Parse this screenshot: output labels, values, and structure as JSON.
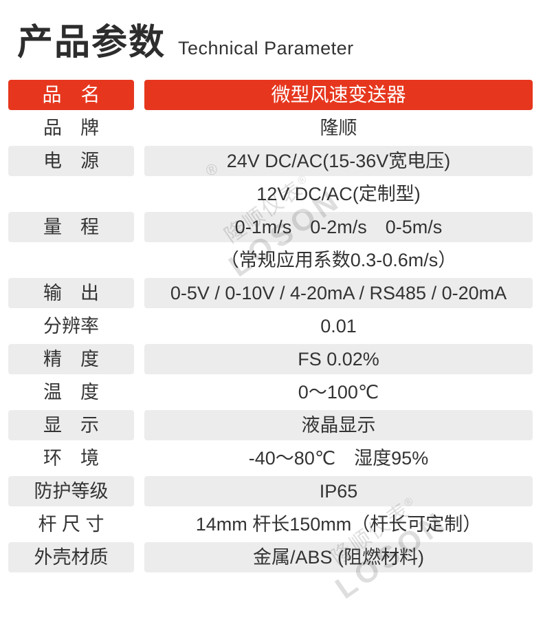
{
  "header": {
    "title": "产品参数",
    "subtitle": "Technical Parameter"
  },
  "watermark": {
    "brand": "隆顺仪表",
    "registered": "®",
    "latin": "LOSON"
  },
  "theme": {
    "accent_red": "#e6371e",
    "row_shade_gray": "#ececec",
    "text_color": "#333333"
  },
  "table": {
    "rows": [
      {
        "label": "品　名",
        "value": "微型风速变送器",
        "style": "header"
      },
      {
        "label": "品　牌",
        "value": "隆顺",
        "style": "plain"
      },
      {
        "label": "电　源",
        "value": "24V DC/AC(15-36V宽电压)",
        "style": "shaded"
      },
      {
        "label": "",
        "value": "12V DC/AC(定制型)",
        "style": "plain"
      },
      {
        "label": "量　程",
        "value": "0-1m/s　0-2m/s　0-5m/s",
        "style": "shaded"
      },
      {
        "label": "",
        "value": "（常规应用系数0.3-0.6m/s）",
        "style": "plain"
      },
      {
        "label": "输　出",
        "value": "0-5V / 0-10V / 4-20mA / RS485 / 0-20mA",
        "style": "shaded"
      },
      {
        "label": "分辨率",
        "value": "0.01",
        "style": "plain"
      },
      {
        "label": "精　度",
        "value": "FS 0.02%",
        "style": "shaded"
      },
      {
        "label": "温　度",
        "value": "0～100℃",
        "style": "plain"
      },
      {
        "label": "显　示",
        "value": "液晶显示",
        "style": "shaded"
      },
      {
        "label": "环　境",
        "value": "-40～80℃　湿度95%",
        "style": "plain"
      },
      {
        "label": "防护等级",
        "value": "IP65",
        "style": "shaded"
      },
      {
        "label": "杆 尺 寸",
        "value": "14mm 杆长150mm（杆长可定制）",
        "style": "plain"
      },
      {
        "label": "外壳材质",
        "value": "金属/ABS (阻燃材料)",
        "style": "shaded"
      }
    ]
  }
}
